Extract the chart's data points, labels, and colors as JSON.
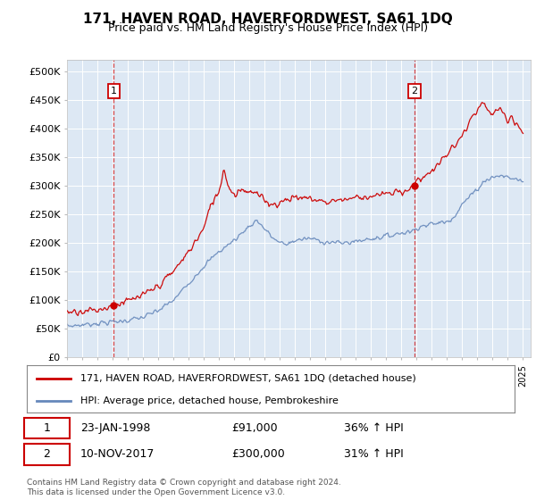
{
  "title": "171, HAVEN ROAD, HAVERFORDWEST, SA61 1DQ",
  "subtitle": "Price paid vs. HM Land Registry's House Price Index (HPI)",
  "legend_line1": "171, HAVEN ROAD, HAVERFORDWEST, SA61 1DQ (detached house)",
  "legend_line2": "HPI: Average price, detached house, Pembrokeshire",
  "annotation1_date": "23-JAN-1998",
  "annotation1_price": "£91,000",
  "annotation1_hpi": "36% ↑ HPI",
  "annotation2_date": "10-NOV-2017",
  "annotation2_price": "£300,000",
  "annotation2_hpi": "31% ↑ HPI",
  "sale1_year": 1998.07,
  "sale1_value": 91000,
  "sale2_year": 2017.86,
  "sale2_value": 300000,
  "hpi_color": "#6688bb",
  "price_color": "#cc0000",
  "bg_color": "#dde8f4",
  "grid_color": "#ffffff",
  "footer": "Contains HM Land Registry data © Crown copyright and database right 2024.\nThis data is licensed under the Open Government Licence v3.0.",
  "ylim": [
    0,
    520000
  ],
  "xmin": 1995.0,
  "xmax": 2025.5,
  "hpi_anchors": [
    [
      1995.0,
      55000
    ],
    [
      1996.0,
      57000
    ],
    [
      1997.0,
      60000
    ],
    [
      1998.0,
      62000
    ],
    [
      1999.0,
      65000
    ],
    [
      2000.0,
      70000
    ],
    [
      2001.0,
      82000
    ],
    [
      2002.0,
      100000
    ],
    [
      2003.0,
      130000
    ],
    [
      2004.0,
      160000
    ],
    [
      2005.0,
      185000
    ],
    [
      2006.0,
      205000
    ],
    [
      2007.0,
      230000
    ],
    [
      2007.5,
      240000
    ],
    [
      2008.0,
      225000
    ],
    [
      2008.5,
      210000
    ],
    [
      2009.0,
      200000
    ],
    [
      2009.5,
      198000
    ],
    [
      2010.0,
      205000
    ],
    [
      2011.0,
      208000
    ],
    [
      2012.0,
      202000
    ],
    [
      2013.0,
      200000
    ],
    [
      2014.0,
      203000
    ],
    [
      2015.0,
      208000
    ],
    [
      2016.0,
      212000
    ],
    [
      2017.0,
      218000
    ],
    [
      2017.86,
      222000
    ],
    [
      2018.0,
      228000
    ],
    [
      2019.0,
      233000
    ],
    [
      2020.0,
      238000
    ],
    [
      2020.5,
      248000
    ],
    [
      2021.0,
      268000
    ],
    [
      2022.0,
      295000
    ],
    [
      2022.5,
      310000
    ],
    [
      2023.0,
      315000
    ],
    [
      2023.5,
      318000
    ],
    [
      2024.0,
      315000
    ],
    [
      2024.5,
      312000
    ],
    [
      2025.0,
      308000
    ]
  ],
  "price_anchors": [
    [
      1995.0,
      80000
    ],
    [
      1996.0,
      82000
    ],
    [
      1997.0,
      83000
    ],
    [
      1998.0,
      91000
    ],
    [
      1998.5,
      95000
    ],
    [
      1999.0,
      98000
    ],
    [
      2000.0,
      108000
    ],
    [
      2001.0,
      125000
    ],
    [
      2002.0,
      150000
    ],
    [
      2003.0,
      185000
    ],
    [
      2004.0,
      225000
    ],
    [
      2004.5,
      270000
    ],
    [
      2005.0,
      290000
    ],
    [
      2005.3,
      330000
    ],
    [
      2005.7,
      295000
    ],
    [
      2006.0,
      285000
    ],
    [
      2006.5,
      295000
    ],
    [
      2007.0,
      290000
    ],
    [
      2007.5,
      285000
    ],
    [
      2008.0,
      275000
    ],
    [
      2008.5,
      268000
    ],
    [
      2009.0,
      270000
    ],
    [
      2009.5,
      278000
    ],
    [
      2010.0,
      280000
    ],
    [
      2011.0,
      278000
    ],
    [
      2012.0,
      272000
    ],
    [
      2013.0,
      276000
    ],
    [
      2014.0,
      280000
    ],
    [
      2015.0,
      282000
    ],
    [
      2016.0,
      285000
    ],
    [
      2017.0,
      290000
    ],
    [
      2017.86,
      300000
    ],
    [
      2018.0,
      308000
    ],
    [
      2018.5,
      318000
    ],
    [
      2019.0,
      325000
    ],
    [
      2019.5,
      340000
    ],
    [
      2020.0,
      355000
    ],
    [
      2020.5,
      370000
    ],
    [
      2021.0,
      388000
    ],
    [
      2021.5,
      410000
    ],
    [
      2022.0,
      432000
    ],
    [
      2022.3,
      445000
    ],
    [
      2022.6,
      435000
    ],
    [
      2022.9,
      420000
    ],
    [
      2023.2,
      432000
    ],
    [
      2023.5,
      438000
    ],
    [
      2023.8,
      420000
    ],
    [
      2024.0,
      410000
    ],
    [
      2024.3,
      415000
    ],
    [
      2024.6,
      405000
    ],
    [
      2025.0,
      395000
    ]
  ]
}
